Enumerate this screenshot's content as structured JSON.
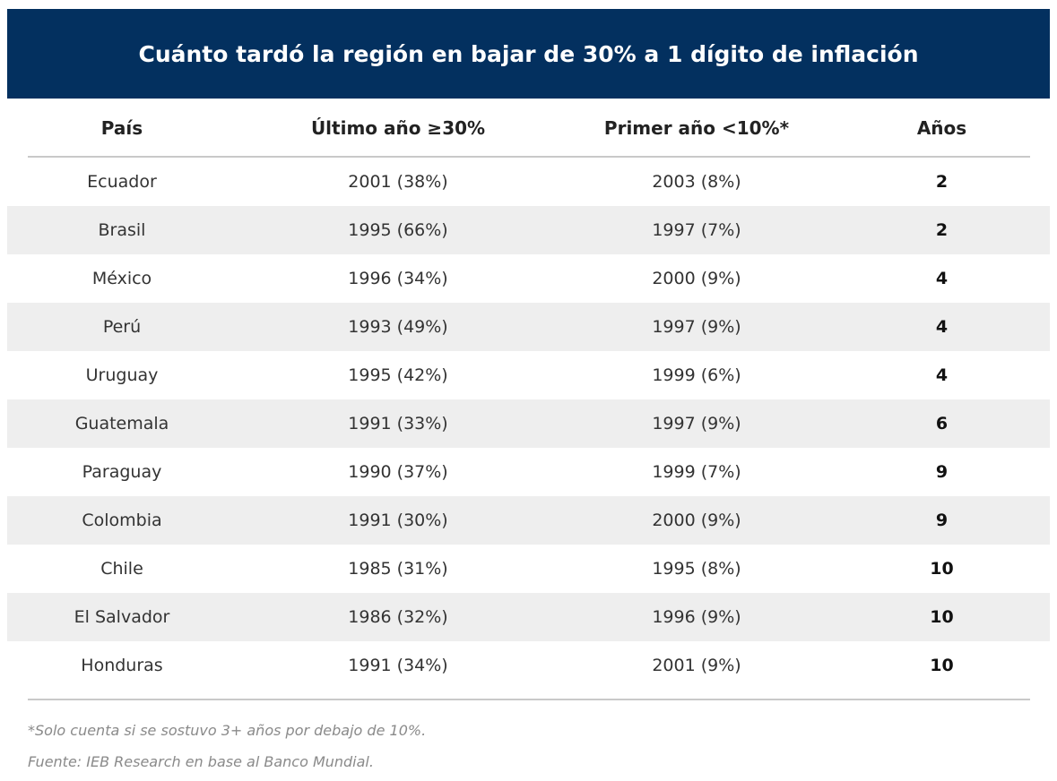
{
  "chart_data": {
    "type": "table",
    "title": "Cuánto tardó la región en bajar de 30% a 1 dígito de inflación",
    "columns": [
      "País",
      "Último año ≥30%",
      "Primer año <10%*",
      "Años"
    ],
    "rows": [
      [
        "Ecuador",
        "2001 (38%)",
        "2003 (8%)",
        "2"
      ],
      [
        "Brasil",
        "1995 (66%)",
        "1997 (7%)",
        "2"
      ],
      [
        "México",
        "1996 (34%)",
        "2000 (9%)",
        "4"
      ],
      [
        "Perú",
        "1993 (49%)",
        "1997 (9%)",
        "4"
      ],
      [
        "Uruguay",
        "1995 (42%)",
        "1999 (6%)",
        "4"
      ],
      [
        "Guatemala",
        "1991 (33%)",
        "1997 (9%)",
        "6"
      ],
      [
        "Paraguay",
        "1990 (37%)",
        "1999 (7%)",
        "9"
      ],
      [
        "Colombia",
        "1991 (30%)",
        "2000 (9%)",
        "9"
      ],
      [
        "Chile",
        "1985 (31%)",
        "1995 (8%)",
        "10"
      ],
      [
        "El Salvador",
        "1986 (32%)",
        "1996 (9%)",
        "10"
      ],
      [
        "Honduras",
        "1991 (34%)",
        "2001 (9%)",
        "10"
      ]
    ],
    "footnote": "*Solo cuenta si se sostuvo 3+ años por debajo de 10%.",
    "source": "Fuente: IEB Research en base al Banco Mundial."
  },
  "colors": {
    "title_background": "#03305f",
    "title_text": "#ffffff",
    "stripe": "#eeeeee",
    "rule": "#c9c9c9",
    "footnote_text": "#8a8a8a"
  }
}
